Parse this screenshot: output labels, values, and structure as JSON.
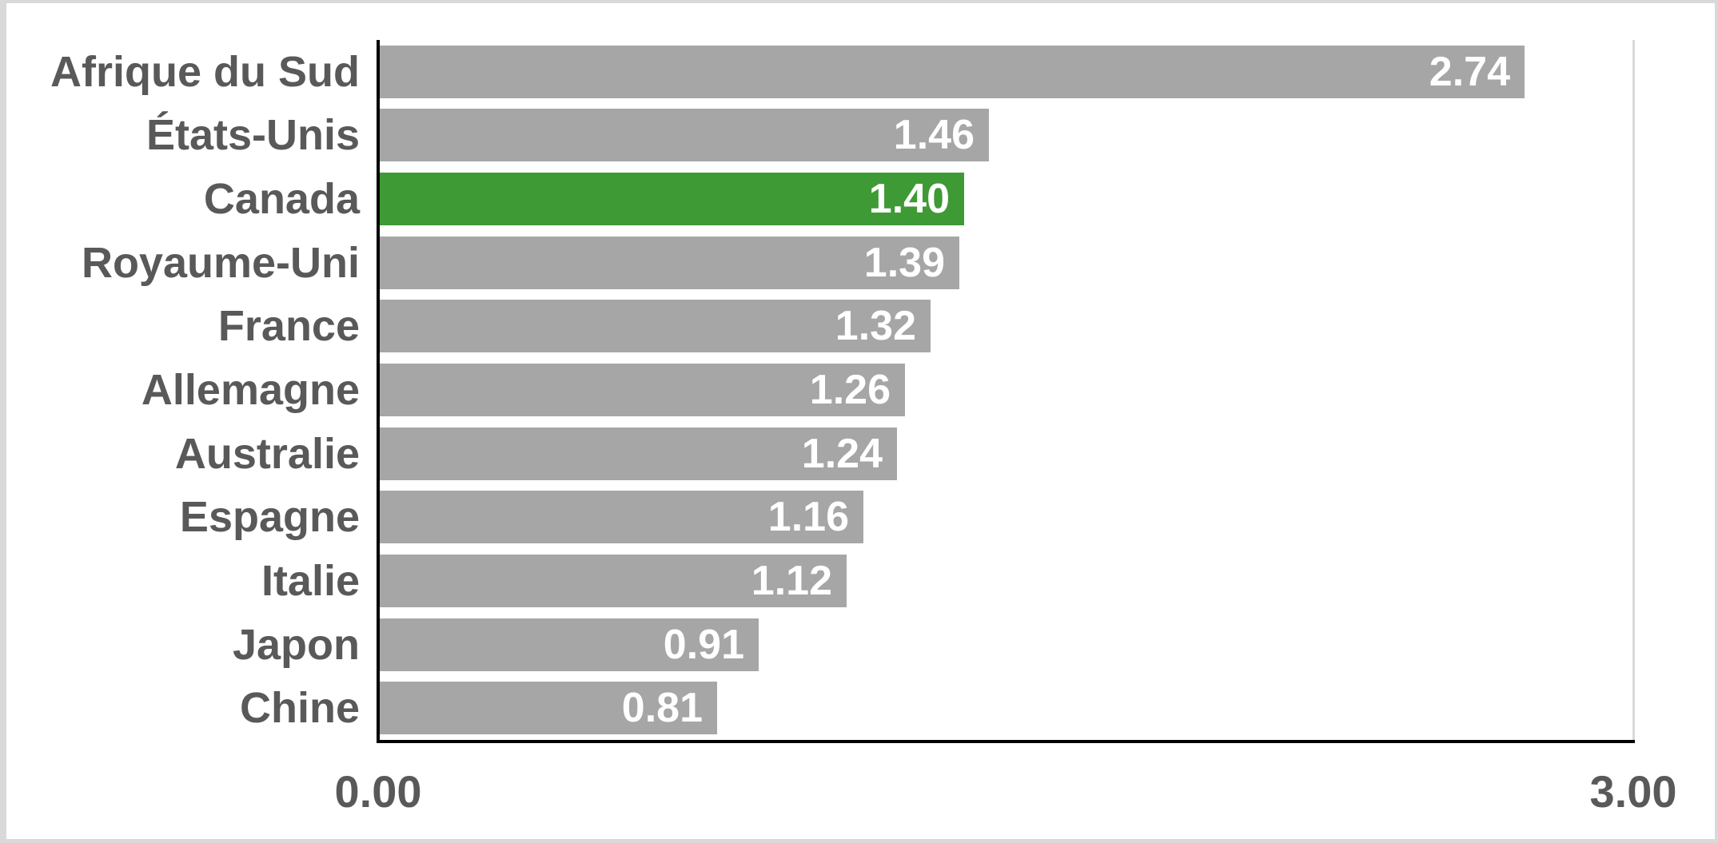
{
  "chart_data": {
    "type": "bar",
    "orientation": "horizontal",
    "title": "",
    "xlabel": "",
    "ylabel": "",
    "categories": [
      "Afrique du Sud",
      "États-Unis",
      "Canada",
      "Royaume-Uni",
      "France",
      "Allemagne",
      "Australie",
      "Espagne",
      "Italie",
      "Japon",
      "Chine"
    ],
    "values": [
      2.74,
      1.46,
      1.4,
      1.39,
      1.32,
      1.26,
      1.24,
      1.16,
      1.12,
      0.91,
      0.81
    ],
    "value_labels": [
      "2.74",
      "1.46",
      "1.40",
      "1.39",
      "1.32",
      "1.26",
      "1.24",
      "1.16",
      "1.12",
      "0.91",
      "0.81"
    ],
    "highlighted_category": "Canada",
    "xlim": [
      0,
      3
    ],
    "x_ticks": [
      "0.00",
      "3.00"
    ],
    "grid": "right-boundary-only",
    "legend": "none",
    "colors": {
      "bar": "#A6A6A6",
      "highlight": "#3E9A35",
      "value_text": "#FFFFFF",
      "label_text": "#595959",
      "axis": "#000000",
      "gridline": "#D9D9D9",
      "frame_border": "#D9D9D9",
      "background": "#FFFFFF"
    }
  }
}
